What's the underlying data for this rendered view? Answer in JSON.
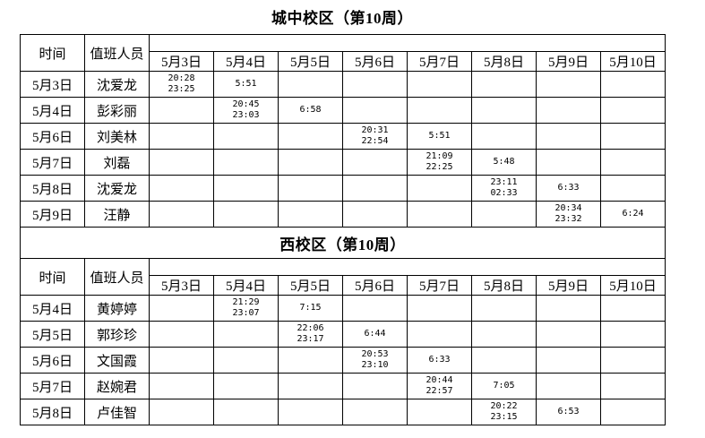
{
  "page": {
    "background": "#ffffff",
    "border_color": "#000000",
    "text_color": "#000000"
  },
  "header": {
    "time_label": "时间",
    "staff_label": "值班人员"
  },
  "date_columns": [
    "5月3日",
    "5月4日",
    "5月5日",
    "5月6日",
    "5月7日",
    "5月8日",
    "5月9日",
    "5月10日"
  ],
  "sections": [
    {
      "title": "城中校区（第10周）",
      "rows": [
        {
          "date": "5月3日",
          "person": "沈爱龙",
          "cells": [
            [
              "20:28",
              "23:25"
            ],
            [
              "5:51"
            ],
            [],
            [],
            [],
            [],
            [],
            []
          ]
        },
        {
          "date": "5月4日",
          "person": "彭彩丽",
          "cells": [
            [],
            [
              "20:45",
              "23:03"
            ],
            [
              "6:58"
            ],
            [],
            [],
            [],
            [],
            []
          ]
        },
        {
          "date": "5月6日",
          "person": "刘美林",
          "cells": [
            [],
            [],
            [],
            [
              "20:31",
              "22:54"
            ],
            [
              "5:51"
            ],
            [],
            [],
            []
          ]
        },
        {
          "date": "5月7日",
          "person": "刘磊",
          "cells": [
            [],
            [],
            [],
            [],
            [
              "21:09",
              "22:25"
            ],
            [
              "5:48"
            ],
            [],
            []
          ]
        },
        {
          "date": "5月8日",
          "person": "沈爱龙",
          "cells": [
            [],
            [],
            [],
            [],
            [],
            [
              "23:11",
              "02:33"
            ],
            [
              "6:33"
            ],
            []
          ]
        },
        {
          "date": "5月9日",
          "person": "汪静",
          "cells": [
            [],
            [],
            [],
            [],
            [],
            [],
            [
              "20:34",
              "23:32"
            ],
            [
              "6:24"
            ]
          ]
        }
      ]
    },
    {
      "title": "西校区（第10周）",
      "rows": [
        {
          "date": "5月4日",
          "person": "黄婷婷",
          "cells": [
            [],
            [
              "21:29",
              "23:07"
            ],
            [
              "7:15"
            ],
            [],
            [],
            [],
            [],
            []
          ]
        },
        {
          "date": "5月5日",
          "person": "郭珍珍",
          "cells": [
            [],
            [],
            [
              "22:06",
              "23:17"
            ],
            [
              "6:44"
            ],
            [],
            [],
            [],
            []
          ]
        },
        {
          "date": "5月6日",
          "person": "文国霞",
          "cells": [
            [],
            [],
            [],
            [
              "20:53",
              "23:10"
            ],
            [
              "6:33"
            ],
            [],
            [],
            []
          ]
        },
        {
          "date": "5月7日",
          "person": "赵婉君",
          "cells": [
            [],
            [],
            [],
            [],
            [
              "20:44",
              "22:57"
            ],
            [
              "7:05"
            ],
            [],
            []
          ]
        },
        {
          "date": "5月8日",
          "person": "卢佳智",
          "cells": [
            [],
            [],
            [],
            [],
            [],
            [
              "20:22",
              "23:15"
            ],
            [
              "6:53"
            ],
            []
          ]
        }
      ]
    }
  ]
}
